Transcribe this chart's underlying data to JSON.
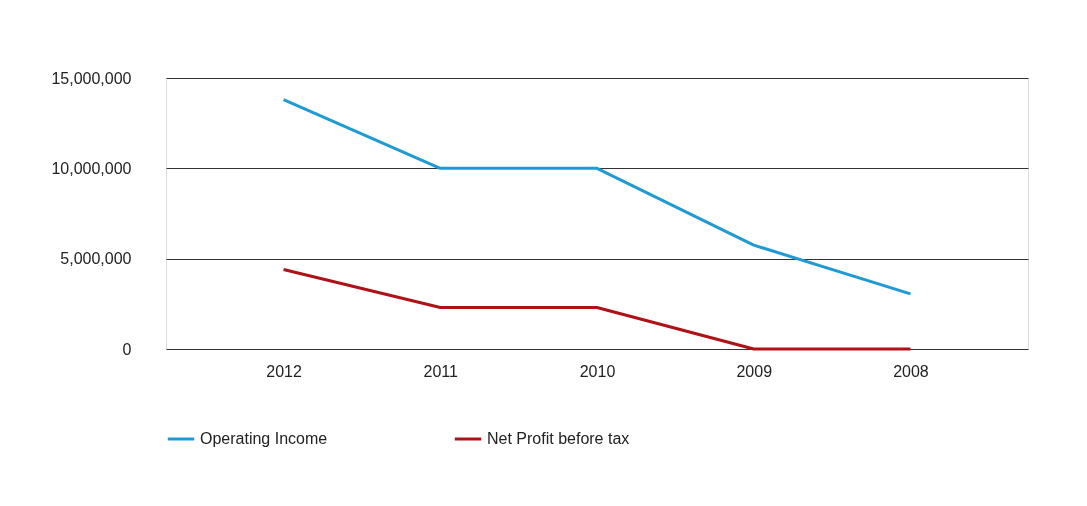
{
  "chart_data": {
    "type": "line",
    "categories": [
      "2012",
      "2011",
      "2010",
      "2009",
      "2008"
    ],
    "series": [
      {
        "name": "Operating Income",
        "color": "#1e9ad6",
        "values": [
          13800000,
          10000000,
          10000000,
          5750000,
          3050000
        ]
      },
      {
        "name": "Net Profit before tax",
        "color": "#b01116",
        "values": [
          4400000,
          2300000,
          2300000,
          0,
          0
        ]
      }
    ],
    "ylim": [
      0,
      15000000
    ],
    "yticks": [
      0,
      {
        "value": 5000000,
        "label": "5,000,000"
      },
      {
        "value": 10000000,
        "label": "10,000,000"
      },
      {
        "value": 15000000,
        "label": "15,000,000"
      }
    ],
    "grid": "y",
    "legend": "bottom",
    "marker": "none",
    "line_style": "solid"
  }
}
